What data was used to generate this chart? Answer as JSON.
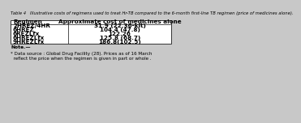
{
  "title": "Table 4   Illustrative costs of regimens used to treat Hr-TB compared to the 6-month first-line TB regimen (price of medicines alone).",
  "col_headers": [
    "Regimen",
    "Approximate cost of medicines alone"
  ],
  "rows": [
    [
      "2HREZ/4HR",
      "31.9 (22.36-kit)"
    ],
    [
      "6HREZ",
      "104.4 (47.8)"
    ],
    [
      "6REZLfx",
      "122.26"
    ],
    [
      "6HREZLfx",
      "125.8 (68.7)"
    ],
    [
      "9HREZLfx",
      "186.8(102.5)"
    ]
  ],
  "note_header": "Note.—",
  "note_line1": "* Data source : Global Drug Facility (28). Prices as of 16 March",
  "note_line2": "  reflect the price when the regimen is given in part or whole .",
  "bg_color": "#c8c8c8",
  "table_bg": "#ffffff",
  "border_color": "#333333",
  "title_fontsize": 3.8,
  "header_fontsize": 5.2,
  "body_fontsize": 5.2,
  "note_fontsize": 4.3,
  "col_split": 0.36
}
